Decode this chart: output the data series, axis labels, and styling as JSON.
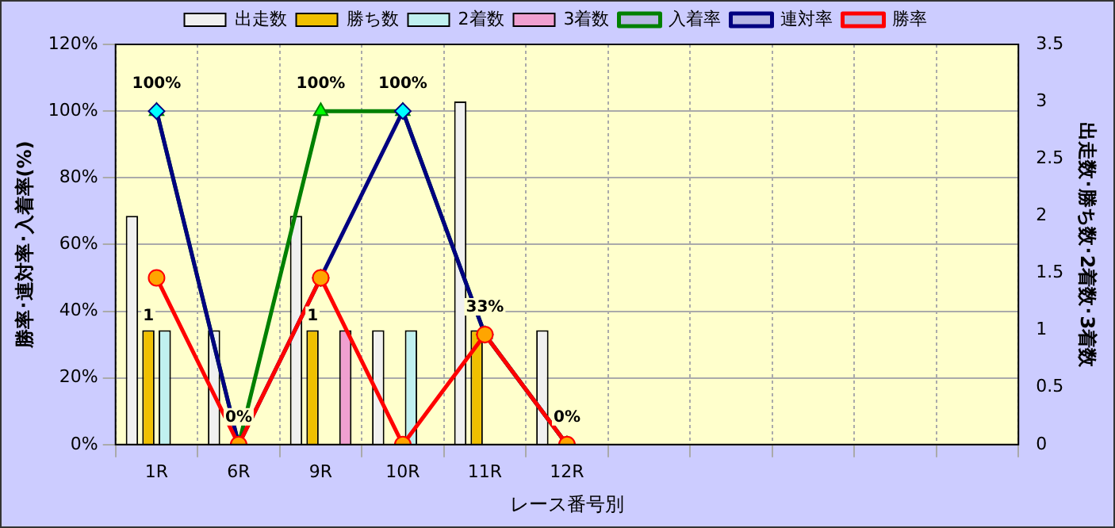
{
  "chart_data": {
    "type": "bar",
    "xlabel": "レース番号別",
    "ylabel": "勝率･連対率･入着率(%)",
    "y2label": "出走数･勝ち数･2着数･3着数",
    "categories": [
      "1R",
      "6R",
      "9R",
      "10R",
      "11R",
      "12R",
      null,
      null,
      null,
      null,
      null
    ],
    "series": [
      {
        "name": "出走数",
        "axis": "y2",
        "color": "#f0f0f0",
        "values": [
          2,
          1,
          2,
          1,
          3,
          1,
          null,
          null,
          null,
          null,
          null
        ]
      },
      {
        "name": "勝ち数",
        "axis": "y2",
        "color": "#f0c000",
        "values": [
          1,
          0,
          1,
          0,
          1,
          0,
          null,
          null,
          null,
          null,
          null
        ],
        "value_labels": [
          "1",
          null,
          "1",
          null,
          null,
          null,
          null,
          null,
          null,
          null,
          null
        ]
      },
      {
        "name": "2着数",
        "axis": "y2",
        "color": "#c0f0f0",
        "values": [
          1,
          0,
          0,
          1,
          0,
          0,
          null,
          null,
          null,
          null,
          null
        ]
      },
      {
        "name": "3着数",
        "axis": "y2",
        "color": "#f0a0d0",
        "values": [
          0,
          0,
          1,
          0,
          0,
          0,
          null,
          null,
          null,
          null,
          null
        ]
      },
      {
        "name": "入着率",
        "type": "line",
        "axis": "y",
        "color": "#008000",
        "marker": "triangle",
        "values": [
          100,
          0,
          100,
          100,
          33,
          0,
          null,
          null,
          null,
          null,
          null
        ],
        "value_labels": [
          "100%",
          "0%",
          "100%",
          "100%",
          "33%",
          "0%",
          null,
          null,
          null,
          null,
          null
        ]
      },
      {
        "name": "連対率",
        "type": "line",
        "axis": "y",
        "color": "#000080",
        "marker": "diamond",
        "values": [
          100,
          0,
          50,
          100,
          33,
          0,
          null,
          null,
          null,
          null,
          null
        ]
      },
      {
        "name": "勝率",
        "type": "line",
        "axis": "y",
        "color": "#ff0000",
        "marker": "circle",
        "values": [
          50,
          0,
          50,
          0,
          33,
          0,
          null,
          null,
          null,
          null,
          null
        ]
      }
    ],
    "ylim": [
      0,
      120
    ],
    "yticks": [
      {
        "value": 0,
        "label": "0%"
      },
      {
        "value": 20,
        "label": "20%"
      },
      {
        "value": 40,
        "label": "40%"
      },
      {
        "value": 60,
        "label": "60%"
      },
      {
        "value": 80,
        "label": "80%"
      },
      {
        "value": 100,
        "label": "100%"
      },
      {
        "value": 120,
        "label": "120%"
      }
    ],
    "y2lim": [
      0,
      3.5
    ],
    "y2ticks": [
      0,
      0.5,
      1,
      1.5,
      2,
      2.5,
      3,
      3.5
    ],
    "grid": true,
    "legend": "top",
    "line_style": "solid"
  }
}
